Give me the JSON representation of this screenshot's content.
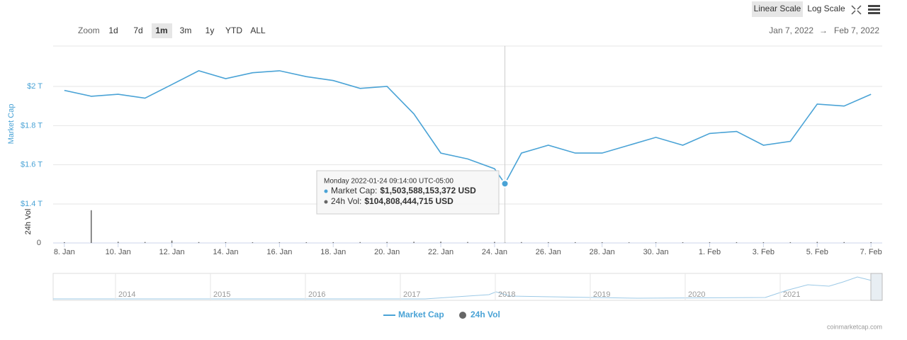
{
  "chart_data": {
    "type": "line",
    "controls": {
      "zoom_label": "Zoom",
      "zoom_buttons": [
        "1d",
        "7d",
        "1m",
        "3m",
        "1y",
        "YTD",
        "ALL"
      ],
      "scale_buttons": [
        "Linear Scale",
        "Log Scale"
      ],
      "range_from": "Jan 7, 2022",
      "range_arrow": "→",
      "range_to": "Feb 7, 2022"
    },
    "y_label": "Market Cap",
    "y2_label": "24h Vol",
    "x": [
      "2022-01-08T00:00",
      "2022-01-09T00:00",
      "2022-01-10T00:00",
      "2022-01-11T00:00",
      "2022-01-12T00:00",
      "2022-01-13T00:00",
      "2022-01-14T00:00",
      "2022-01-15T00:00",
      "2022-01-16T00:00",
      "2022-01-17T00:00",
      "2022-01-18T00:00",
      "2022-01-19T00:00",
      "2022-01-20T00:00",
      "2022-01-21T00:00",
      "2022-01-22T00:00",
      "2022-01-23T00:00",
      "2022-01-24T00:00",
      "2022-01-24T09:14",
      "2022-01-25T00:00",
      "2022-01-26T00:00",
      "2022-01-27T00:00",
      "2022-01-28T00:00",
      "2022-01-29T00:00",
      "2022-01-30T00:00",
      "2022-01-31T00:00",
      "2022-02-01T00:00",
      "2022-02-02T00:00",
      "2022-02-03T00:00",
      "2022-02-04T00:00",
      "2022-02-05T00:00",
      "2022-02-06T00:00",
      "2022-02-07T00:00"
    ],
    "series": [
      {
        "name": "Market Cap",
        "color": "#4aa3d6",
        "values": [
          1.98,
          1.95,
          1.96,
          1.94,
          2.01,
          2.08,
          2.04,
          2.07,
          2.08,
          2.05,
          2.03,
          1.99,
          2.0,
          1.86,
          1.66,
          1.63,
          1.58,
          1.5036,
          1.66,
          1.7,
          1.66,
          1.66,
          1.7,
          1.74,
          1.7,
          1.76,
          1.77,
          1.7,
          1.72,
          1.91,
          1.9,
          1.96
        ]
      },
      {
        "name": "24h Vol",
        "color": "#666666",
        "axis": "y2",
        "values": [
          100,
          4200,
          150,
          120,
          300,
          110,
          100,
          90,
          80,
          90,
          100,
          110,
          120,
          150,
          160,
          120,
          130,
          105,
          110,
          100,
          100,
          90,
          80,
          80,
          90,
          100,
          100,
          90,
          100,
          130,
          110,
          100
        ]
      }
    ],
    "xlim": [
      "2022-01-07T14:00",
      "2022-02-07T10:00"
    ],
    "xticks": [
      {
        "value": "2022-01-08T00:00",
        "label": "8. Jan"
      },
      {
        "value": "2022-01-10T00:00",
        "label": "10. Jan"
      },
      {
        "value": "2022-01-12T00:00",
        "label": "12. Jan"
      },
      {
        "value": "2022-01-14T00:00",
        "label": "14. Jan"
      },
      {
        "value": "2022-01-16T00:00",
        "label": "16. Jan"
      },
      {
        "value": "2022-01-18T00:00",
        "label": "18. Jan"
      },
      {
        "value": "2022-01-20T00:00",
        "label": "20. Jan"
      },
      {
        "value": "2022-01-22T00:00",
        "label": "22. Jan"
      },
      {
        "value": "2022-01-24T00:00",
        "label": "24. Jan"
      },
      {
        "value": "2022-01-26T00:00",
        "label": "26. Jan"
      },
      {
        "value": "2022-01-28T00:00",
        "label": "28. Jan"
      },
      {
        "value": "2022-01-30T00:00",
        "label": "30. Jan"
      },
      {
        "value": "2022-02-01T00:00",
        "label": "1. Feb"
      },
      {
        "value": "2022-02-03T00:00",
        "label": "3. Feb"
      },
      {
        "value": "2022-02-05T00:00",
        "label": "5. Feb"
      },
      {
        "value": "2022-02-07T00:00",
        "label": "7. Feb"
      }
    ],
    "ylim": [
      1.4,
      2.2
    ],
    "yticks": [
      {
        "value": 1.4,
        "label": "$1.4 T"
      },
      {
        "value": 1.6,
        "label": "$1.6 T"
      },
      {
        "value": 1.8,
        "label": "$1.8 T"
      },
      {
        "value": 2,
        "label": "$2 T"
      }
    ],
    "y2lim": [
      0,
      5000
    ],
    "y2ticks": [
      0
    ],
    "grid": true,
    "tooltip": {
      "date": "Monday 2022-01-24 09:14:00 UTC-05:00",
      "rows": [
        {
          "label": "Market Cap:",
          "value": "$1,503,588,153,372 USD"
        },
        {
          "label": "24h Vol:",
          "value": "$104,808,444,715 USD"
        }
      ]
    },
    "navigator": {
      "labels": [
        "2014",
        "2015",
        "2016",
        "2017",
        "2018",
        "2019",
        "2020",
        "2021"
      ]
    },
    "credit": "coinmarketcap.com"
  }
}
